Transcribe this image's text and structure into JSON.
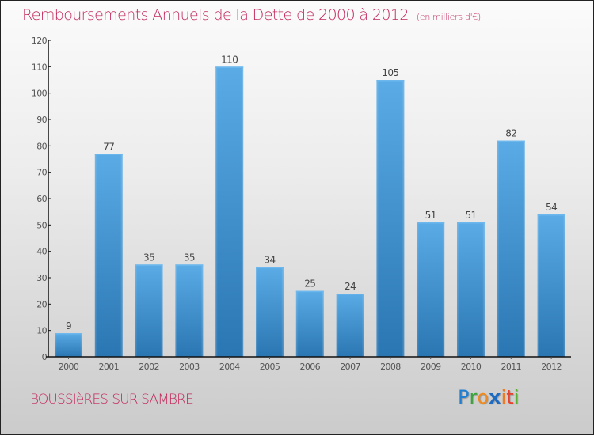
{
  "chart_data": {
    "type": "bar",
    "title": "Remboursements Annuels de la Dette de 2000 à 2012",
    "subtitle": "(en milliers d'€)",
    "categories": [
      "2000",
      "2001",
      "2002",
      "2003",
      "2004",
      "2005",
      "2006",
      "2007",
      "2008",
      "2009",
      "2010",
      "2011",
      "2012"
    ],
    "values": [
      9,
      77,
      35,
      35,
      110,
      34,
      25,
      24,
      105,
      51,
      51,
      82,
      54
    ],
    "xlabel": "",
    "ylabel": "",
    "ylim": [
      0,
      120
    ],
    "yticks": [
      0,
      10,
      20,
      30,
      40,
      50,
      60,
      70,
      80,
      90,
      100,
      110,
      120
    ],
    "grid": false,
    "legend": "none",
    "bar_color_top": "#5aabe6",
    "bar_color_bottom": "#2a76b2"
  },
  "location": "BOUSSIèRES-SUR-SAMBRE",
  "logo": {
    "letters": [
      {
        "char": "P",
        "color": "#1f7fd2"
      },
      {
        "char": "r",
        "color": "#3ba33b"
      },
      {
        "char": "o",
        "color": "#f08a1c"
      },
      {
        "char": "x",
        "color": "#1e6cc2"
      },
      {
        "char": "i",
        "color": "#f07a1e"
      },
      {
        "char": "t",
        "color": "#e8402a"
      },
      {
        "char": "i",
        "color": "#5ab032"
      }
    ]
  },
  "colors": {
    "title": "#c3295b",
    "axis": "#111111"
  }
}
